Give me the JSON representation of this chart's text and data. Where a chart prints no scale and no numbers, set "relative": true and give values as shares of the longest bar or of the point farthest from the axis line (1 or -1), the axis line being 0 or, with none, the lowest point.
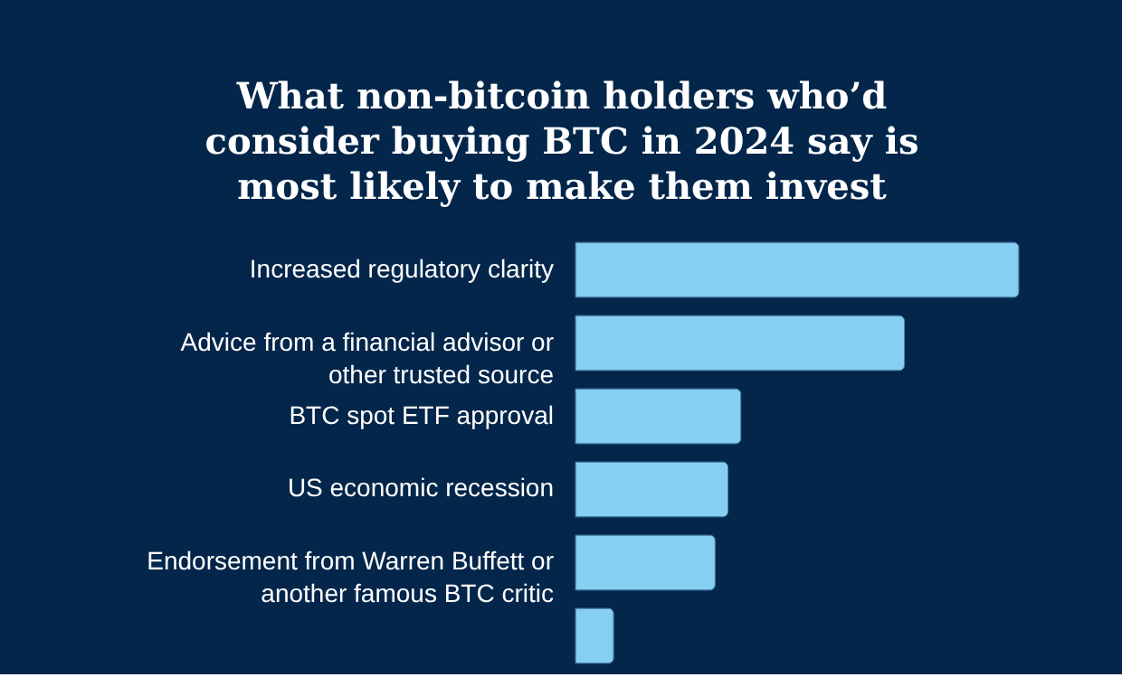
{
  "chart_data": {
    "type": "bar",
    "orientation": "horizontal",
    "relative": true,
    "title": "What non-bitcoin holders who’d consider buying BTC in 2024 say is most likely to make them invest",
    "categories": [
      "Increased regulatory clarity",
      "Advice from a financial advisor or other trusted source",
      "BTC spot ETF approval",
      "US economic recession",
      "Endorsement from Warren Buffett or another famous BTC critic",
      null
    ],
    "values": [
      1,
      0.742,
      0.373,
      0.344,
      0.315,
      0.086
    ],
    "color": "#86cff0"
  }
}
